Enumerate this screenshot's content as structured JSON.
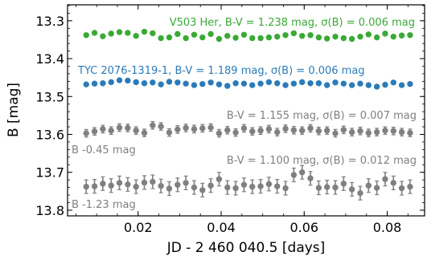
{
  "chart_data": {
    "type": "scatter",
    "xlabel": "JD - 2 460 040.5 [days]",
    "ylabel": "B [mag]",
    "xlim": [
      0.003,
      0.089
    ],
    "ylim": [
      13.815,
      13.258
    ],
    "y_inverted": true,
    "grid": false,
    "x_ticks": [
      0.02,
      0.04,
      0.06,
      0.08
    ],
    "x_tick_labels": [
      "0.02",
      "0.04",
      "0.06",
      "0.08"
    ],
    "y_ticks": [
      13.3,
      13.4,
      13.5,
      13.6,
      13.7,
      13.8
    ],
    "y_tick_labels": [
      "13.3",
      "13.4",
      "13.5",
      "13.6",
      "13.7",
      "13.8"
    ],
    "x": [
      0.0075,
      0.0095,
      0.0115,
      0.0135,
      0.0155,
      0.0175,
      0.0195,
      0.0215,
      0.0235,
      0.0255,
      0.0275,
      0.0295,
      0.0315,
      0.0335,
      0.0355,
      0.0375,
      0.0395,
      0.0415,
      0.0435,
      0.0455,
      0.0475,
      0.0495,
      0.0515,
      0.0535,
      0.0555,
      0.0575,
      0.0595,
      0.0615,
      0.0635,
      0.0655,
      0.0675,
      0.0695,
      0.0715,
      0.0735,
      0.0755,
      0.0775,
      0.0795,
      0.0815,
      0.0835,
      0.0855
    ],
    "series": [
      {
        "name": "V503 Her, B-V = 1.238 mag, σ(B) = 0.006 mag",
        "color": "#3aa935",
        "y": [
          13.338,
          13.332,
          13.341,
          13.334,
          13.33,
          13.332,
          13.34,
          13.329,
          13.333,
          13.346,
          13.344,
          13.335,
          13.346,
          13.337,
          13.344,
          13.335,
          13.348,
          13.34,
          13.345,
          13.337,
          13.346,
          13.346,
          13.344,
          13.342,
          13.338,
          13.333,
          13.34,
          13.338,
          13.344,
          13.347,
          13.342,
          13.346,
          13.348,
          13.342,
          13.336,
          13.344,
          13.334,
          13.342,
          13.339,
          13.338
        ],
        "err": 0.003
      },
      {
        "name": "TYC 2076-1319-1, B-V = 1.189 mag, σ(B) = 0.006 mag",
        "color": "#2b7bb9",
        "y": [
          13.468,
          13.466,
          13.465,
          13.462,
          13.457,
          13.458,
          13.462,
          13.465,
          13.463,
          13.468,
          13.461,
          13.463,
          13.466,
          13.47,
          13.467,
          13.463,
          13.468,
          13.472,
          13.465,
          13.466,
          13.47,
          13.466,
          13.462,
          13.465,
          13.47,
          13.466,
          13.462,
          13.465,
          13.465,
          13.47,
          13.463,
          13.466,
          13.47,
          13.466,
          13.47,
          13.474,
          13.469,
          13.463,
          13.47,
          13.467
        ],
        "err": 0.003
      },
      {
        "name": "B -0.45 mag",
        "label_detail": "B-V = 1.155 mag, σ(B) = 0.007 mag",
        "color": "#808080",
        "y": [
          13.597,
          13.592,
          13.586,
          13.59,
          13.582,
          13.583,
          13.59,
          13.596,
          13.576,
          13.579,
          13.595,
          13.587,
          13.583,
          13.586,
          13.584,
          13.582,
          13.597,
          13.589,
          13.595,
          13.584,
          13.592,
          13.59,
          13.586,
          13.594,
          13.585,
          13.589,
          13.59,
          13.584,
          13.591,
          13.59,
          13.597,
          13.588,
          13.594,
          13.591,
          13.596,
          13.594,
          13.59,
          13.591,
          13.594,
          13.596
        ],
        "err": 0.01
      },
      {
        "name": "B -1.23 mag",
        "label_detail": "B-V = 1.100 mag, σ(B) = 0.012 mag",
        "color": "#808080",
        "y": [
          13.738,
          13.737,
          13.73,
          13.735,
          13.728,
          13.732,
          13.738,
          13.727,
          13.725,
          13.736,
          13.743,
          13.733,
          13.728,
          13.74,
          13.747,
          13.735,
          13.718,
          13.74,
          13.742,
          13.733,
          13.738,
          13.737,
          13.731,
          13.737,
          13.742,
          13.707,
          13.7,
          13.716,
          13.741,
          13.739,
          13.74,
          13.73,
          13.745,
          13.755,
          13.735,
          13.741,
          13.718,
          13.728,
          13.742,
          13.738
        ],
        "err": 0.018
      }
    ],
    "annotations": [
      "V503 Her, B-V = 1.238 mag, σ(B) = 0.006 mag",
      "TYC 2076-1319-1, B-V = 1.189 mag, σ(B) = 0.006 mag",
      "B-V = 1.155 mag, σ(B) = 0.007 mag",
      "B -0.45 mag",
      "B-V = 1.100 mag, σ(B) = 0.012 mag",
      "B -1.23 mag"
    ]
  }
}
